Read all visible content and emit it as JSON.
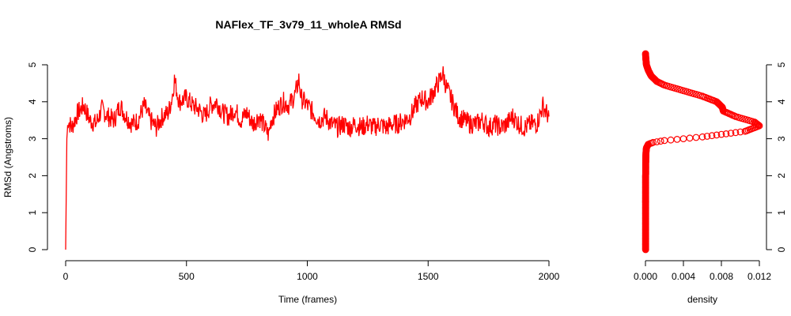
{
  "chart_data": [
    {
      "type": "line",
      "title": "NAFlex_TF_3v79_11_wholeA RMSd",
      "xlabel": "Time (frames)",
      "ylabel": "RMSd (Angstroms)",
      "xlim": [
        0,
        2000
      ],
      "ylim": [
        0,
        5
      ],
      "x_ticks": [
        "0",
        "500",
        "1000",
        "1500",
        "2000"
      ],
      "y_ticks": [
        "0",
        "1",
        "2",
        "3",
        "4",
        "5"
      ],
      "color": "#ff0000",
      "grid": false,
      "series": [
        {
          "x": [
            0,
            5,
            10,
            25,
            50,
            75,
            100,
            125,
            150,
            175,
            200,
            225,
            250,
            275,
            300,
            325,
            350,
            375,
            400,
            425,
            440,
            450,
            470,
            500,
            525,
            550,
            575,
            600,
            625,
            650,
            675,
            700,
            725,
            750,
            775,
            800,
            825,
            840,
            850,
            875,
            900,
            925,
            950,
            965,
            975,
            1000,
            1025,
            1050,
            1075,
            1100,
            1125,
            1150,
            1175,
            1200,
            1225,
            1250,
            1275,
            1300,
            1325,
            1350,
            1375,
            1400,
            1425,
            1450,
            1475,
            1500,
            1525,
            1550,
            1560,
            1575,
            1600,
            1625,
            1650,
            1675,
            1700,
            1725,
            1750,
            1775,
            1800,
            1825,
            1850,
            1875,
            1900,
            1925,
            1950,
            1975,
            1990,
            2000
          ],
          "values": [
            0.0,
            3.0,
            3.5,
            3.3,
            3.7,
            3.9,
            3.5,
            3.4,
            3.8,
            3.6,
            3.5,
            3.9,
            3.6,
            3.4,
            3.5,
            3.9,
            3.5,
            3.3,
            3.6,
            3.7,
            4.1,
            4.6,
            4.0,
            4.1,
            3.9,
            3.8,
            3.6,
            3.9,
            4.0,
            3.7,
            3.6,
            3.8,
            3.5,
            3.7,
            3.4,
            3.6,
            3.3,
            3.1,
            3.5,
            3.8,
            4.0,
            3.9,
            4.2,
            4.6,
            4.1,
            3.9,
            3.7,
            3.5,
            3.6,
            3.4,
            3.3,
            3.4,
            3.3,
            3.4,
            3.3,
            3.4,
            3.3,
            3.4,
            3.3,
            3.4,
            3.4,
            3.5,
            3.6,
            3.9,
            4.1,
            4.0,
            4.3,
            4.6,
            4.8,
            4.4,
            4.0,
            3.6,
            3.5,
            3.4,
            3.4,
            3.5,
            3.3,
            3.4,
            3.3,
            3.4,
            3.6,
            3.4,
            3.3,
            3.4,
            3.4,
            3.9,
            3.7,
            3.6
          ]
        }
      ]
    },
    {
      "type": "scatter",
      "xlabel": "density",
      "xlim": [
        0,
        0.012
      ],
      "ylim": [
        0,
        5
      ],
      "x_ticks": [
        "0.000",
        "0.004",
        "0.008",
        "0.012"
      ],
      "y_ticks": [
        "0",
        "1",
        "2",
        "3",
        "4",
        "5"
      ],
      "color": "#ff0000",
      "marker": "open-circle",
      "series": [
        {
          "x": [
            2e-05,
            2e-05,
            2e-05,
            2e-05,
            2e-05,
            3e-05,
            5e-05,
            0.0001,
            0.0003,
            0.0008,
            0.002,
            0.006,
            0.0105,
            0.012,
            0.0115,
            0.0095,
            0.0082,
            0.0081,
            0.0075,
            0.006,
            0.004,
            0.002,
            0.0012,
            0.0006,
            0.0003,
            0.0001,
            3e-05,
            1e-05
          ],
          "y": [
            0.0,
            0.5,
            1.0,
            1.5,
            2.0,
            2.4,
            2.6,
            2.75,
            2.85,
            2.9,
            2.95,
            3.05,
            3.2,
            3.35,
            3.45,
            3.6,
            3.75,
            3.85,
            4.0,
            4.15,
            4.3,
            4.45,
            4.55,
            4.7,
            4.85,
            5.0,
            5.2,
            5.3
          ]
        }
      ]
    }
  ]
}
